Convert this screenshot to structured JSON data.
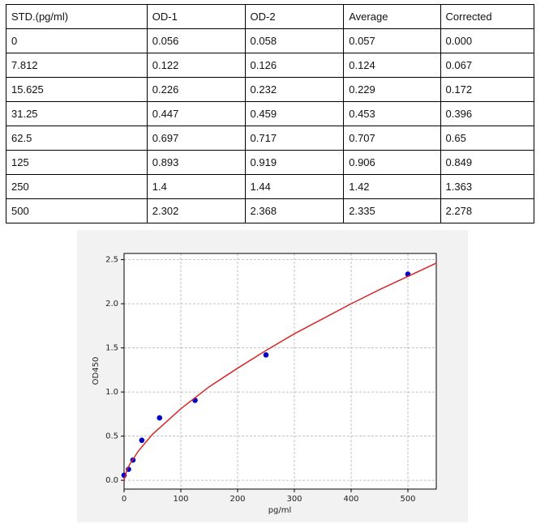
{
  "table": {
    "header": [
      "STD.(pg/ml)",
      "OD-1",
      "OD-2",
      "Average",
      "Corrected"
    ],
    "rows": [
      [
        "0",
        "0.056",
        "0.058",
        "0.057",
        "0.000"
      ],
      [
        "7.812",
        "0.122",
        "0.126",
        "0.124",
        "0.067"
      ],
      [
        "15.625",
        "0.226",
        "0.232",
        "0.229",
        "0.172"
      ],
      [
        "31.25",
        "0.447",
        "0.459",
        "0.453",
        "0.396"
      ],
      [
        "62.5",
        "0.697",
        "0.717",
        "0.707",
        "0.65"
      ],
      [
        "125",
        "0.893",
        "0.919",
        "0.906",
        "0.849"
      ],
      [
        "250",
        "1.4",
        "1.44",
        "1.42",
        "1.363"
      ],
      [
        "500",
        "2.302",
        "2.368",
        "2.335",
        "2.278"
      ]
    ]
  },
  "chart_data": {
    "type": "scatter",
    "xlabel": "pg/ml",
    "ylabel": "OD450",
    "xlim": [
      0,
      550
    ],
    "ylim": [
      -0.1,
      2.57
    ],
    "xticks": [
      0,
      100,
      200,
      300,
      400,
      500
    ],
    "yticks": [
      {
        "value": 0,
        "label": "0.0"
      },
      {
        "value": 0.5,
        "label": "0.5"
      },
      {
        "value": 1,
        "label": "1.0"
      },
      {
        "value": 1.5,
        "label": "1.5"
      },
      {
        "value": 2,
        "label": "2.0"
      },
      {
        "value": 2.5,
        "label": "2.5"
      }
    ],
    "grid": true,
    "series": [
      {
        "type": "scatter",
        "color": "#0000cc",
        "x": [
          0,
          7.812,
          15.625,
          31.25,
          62.5,
          125,
          250,
          500
        ],
        "values": [
          0.057,
          0.124,
          0.229,
          0.453,
          0.707,
          0.906,
          1.42,
          2.335
        ]
      },
      {
        "type": "line",
        "color": "#d62728",
        "x": [
          0,
          5,
          10,
          25,
          50,
          100,
          150,
          200,
          250,
          300,
          350,
          400,
          450,
          500,
          550
        ],
        "values": [
          0,
          0.12,
          0.18,
          0.33,
          0.52,
          0.81,
          1.06,
          1.27,
          1.47,
          1.66,
          1.83,
          2.0,
          2.16,
          2.31,
          2.46
        ]
      }
    ]
  }
}
